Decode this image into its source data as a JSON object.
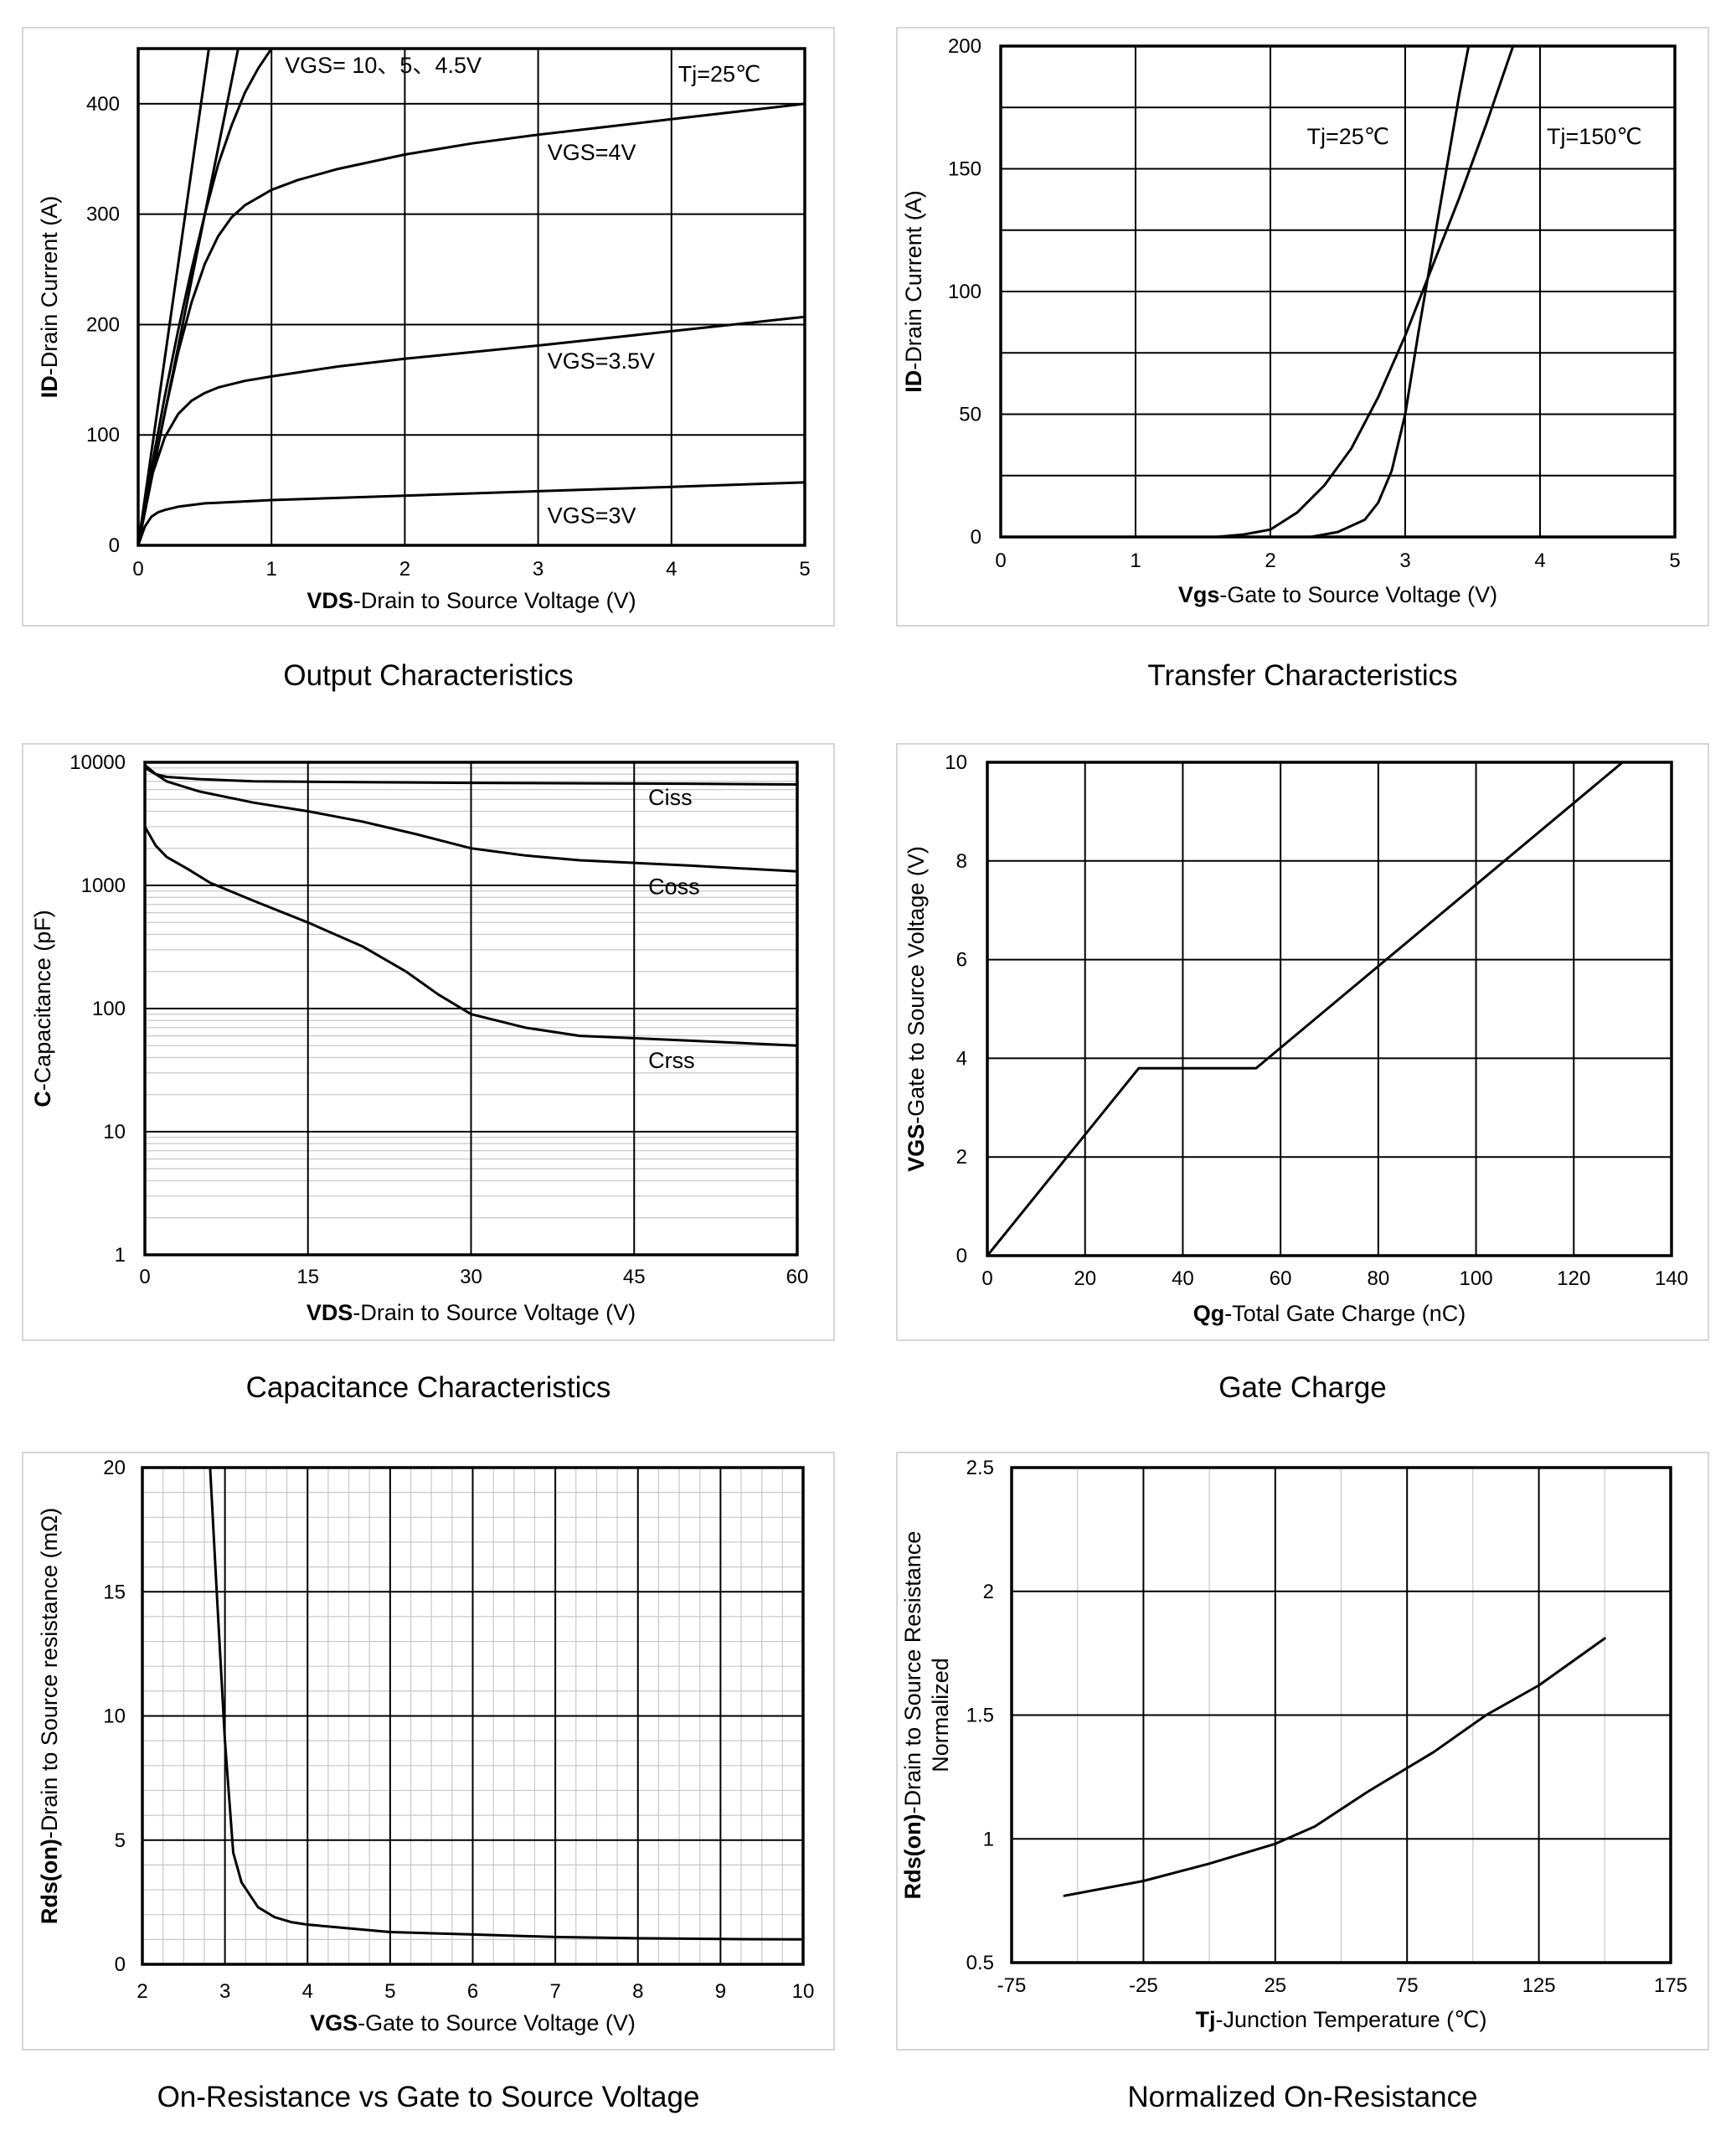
{
  "chart_data": [
    {
      "type": "line",
      "title": "Output Characteristics",
      "xlabel_bold": "VDS",
      "xlabel_rest": "-Drain to Source Voltage (V)",
      "ylabel_bold": "ID",
      "ylabel_rest": "-Drain Current (A)",
      "xlim": [
        0,
        5
      ],
      "ylim": [
        0,
        450
      ],
      "xticks": [
        0,
        1,
        2,
        3,
        4,
        5
      ],
      "yticks": [
        0,
        100,
        200,
        300,
        400
      ],
      "hgrid": [
        0,
        100,
        200,
        300,
        400
      ],
      "vgrid": [
        1,
        2,
        3,
        4
      ],
      "series": [
        {
          "name": "VGS=10V",
          "x": [
            0,
            0.53
          ],
          "y": [
            0,
            450
          ]
        },
        {
          "name": "VGS=5V",
          "x": [
            0,
            0.75
          ],
          "y": [
            0,
            450
          ]
        },
        {
          "name": "VGS=4.5V",
          "x": [
            0,
            0.1,
            0.2,
            0.3,
            0.4,
            0.5,
            0.6,
            0.7,
            0.8,
            0.9,
            1.0
          ],
          "y": [
            0,
            70,
            135,
            195,
            250,
            300,
            345,
            380,
            410,
            432,
            450
          ]
        },
        {
          "name": "VGS=4V",
          "x": [
            0,
            0.1,
            0.2,
            0.3,
            0.4,
            0.5,
            0.6,
            0.7,
            0.8,
            1.0,
            1.2,
            1.5,
            2.0,
            2.5,
            3.0,
            3.5,
            4.0,
            4.5,
            5.0
          ],
          "y": [
            0,
            60,
            120,
            175,
            220,
            255,
            280,
            297,
            308,
            322,
            331,
            341,
            354,
            364,
            372,
            379,
            386,
            393,
            400
          ]
        },
        {
          "name": "VGS=3.5V",
          "x": [
            0,
            0.05,
            0.1,
            0.2,
            0.3,
            0.4,
            0.5,
            0.6,
            0.8,
            1.0,
            1.5,
            2.0,
            3.0,
            4.0,
            5.0
          ],
          "y": [
            0,
            35,
            62,
            98,
            119,
            131,
            138,
            143,
            149,
            153,
            162,
            169,
            181,
            194,
            207
          ]
        },
        {
          "name": "VGS=3V",
          "x": [
            0,
            0.05,
            0.1,
            0.15,
            0.2,
            0.3,
            0.5,
            1.0,
            2.0,
            3.0,
            4.0,
            5.0
          ],
          "y": [
            0,
            17,
            26,
            30,
            32,
            35,
            38,
            41,
            45,
            49,
            53,
            57
          ]
        }
      ],
      "annotations": [
        {
          "text": "VGS= 10、5、4.5V",
          "x": 1.1,
          "y": 428
        },
        {
          "text": "Tj=25℃",
          "x": 4.05,
          "y": 420
        },
        {
          "text": "VGS=4V",
          "x": 3.07,
          "y": 349
        },
        {
          "text": "VGS=3.5V",
          "x": 3.07,
          "y": 160
        },
        {
          "text": "VGS=3V",
          "x": 3.07,
          "y": 20
        }
      ]
    },
    {
      "type": "line",
      "title": "Transfer Characteristics",
      "xlabel_bold": "Vgs",
      "xlabel_rest": "-Gate to Source Voltage (V)",
      "ylabel_bold": "ID",
      "ylabel_rest": "-Drain Current (A)",
      "xlim": [
        0,
        5
      ],
      "ylim": [
        0,
        200
      ],
      "xticks": [
        0,
        1,
        2,
        3,
        4,
        5
      ],
      "yticks": [
        0,
        50,
        100,
        150,
        200
      ],
      "hgrid": [
        0,
        25,
        50,
        75,
        100,
        125,
        150,
        175
      ],
      "vgrid": [
        1,
        2,
        3,
        4
      ],
      "series": [
        {
          "name": "Tj=25℃",
          "x": [
            0,
            2.3,
            2.5,
            2.7,
            2.8,
            2.9,
            3.0,
            3.1,
            3.2,
            3.3,
            3.4,
            3.47
          ],
          "y": [
            0,
            0,
            2,
            7,
            14,
            27,
            50,
            84,
            116,
            148,
            180,
            200
          ]
        },
        {
          "name": "Tj=150℃",
          "x": [
            0,
            1.6,
            1.8,
            2.0,
            2.2,
            2.4,
            2.6,
            2.8,
            3.0,
            3.2,
            3.4,
            3.6,
            3.8
          ],
          "y": [
            0,
            0,
            1,
            3,
            10,
            21,
            36,
            57,
            82,
            110,
            138,
            168,
            200
          ]
        }
      ],
      "annotations": [
        {
          "text": "Tj=25℃",
          "x": 2.27,
          "y": 160
        },
        {
          "text": "Tj=150℃",
          "x": 4.05,
          "y": 160
        }
      ]
    },
    {
      "type": "line",
      "title": "Capacitance Characteristics",
      "xlabel_bold": "VDS",
      "xlabel_rest": "-Drain to Source Voltage (V)",
      "ylabel_bold": "C",
      "ylabel_rest": "-Capacitance (pF)",
      "yscale": "log",
      "xlim": [
        0,
        60
      ],
      "ylim": [
        1,
        10000
      ],
      "xticks": [
        0,
        15,
        30,
        45,
        60
      ],
      "yticks": [
        1,
        10,
        100,
        1000,
        10000
      ],
      "ytick_labels": [
        "1",
        "10",
        "100",
        "1000",
        "10000"
      ],
      "vgrid": [
        15,
        30,
        45
      ],
      "series": [
        {
          "name": "Ciss",
          "x": [
            0,
            1,
            2,
            5,
            10,
            20,
            30,
            40,
            50,
            60
          ],
          "y": [
            9000,
            8000,
            7600,
            7300,
            7000,
            6900,
            6800,
            6750,
            6700,
            6600
          ]
        },
        {
          "name": "Coss",
          "x": [
            0,
            1,
            2,
            5,
            10,
            15,
            20,
            25,
            30,
            35,
            40,
            50,
            60
          ],
          "y": [
            9500,
            8000,
            7000,
            5800,
            4700,
            4000,
            3300,
            2600,
            2000,
            1750,
            1600,
            1450,
            1300
          ]
        },
        {
          "name": "Crss",
          "x": [
            0,
            1,
            2,
            4,
            6,
            10,
            15,
            20,
            24,
            27,
            30,
            35,
            40,
            50,
            60
          ],
          "y": [
            3000,
            2100,
            1700,
            1350,
            1050,
            750,
            500,
            320,
            200,
            130,
            90,
            70,
            60,
            55,
            50
          ]
        }
      ],
      "annotations": [
        {
          "text": "Ciss",
          "x": 46.3,
          "y": 4500
        },
        {
          "text": "Coss",
          "x": 46.3,
          "y": 850
        },
        {
          "text": "Crss",
          "x": 46.3,
          "y": 33
        }
      ]
    },
    {
      "type": "line",
      "title": "Gate Charge",
      "xlabel_bold": "Qg",
      "xlabel_rest": "-Total  Gate Charge (nC)",
      "ylabel_bold": "VGS",
      "ylabel_rest": "-Gate to Source Voltage (V)",
      "xlim": [
        0,
        140
      ],
      "ylim": [
        0,
        10
      ],
      "xticks": [
        0,
        20,
        40,
        60,
        80,
        100,
        120,
        140
      ],
      "yticks": [
        0,
        2,
        4,
        6,
        8,
        10
      ],
      "hgrid": [
        2,
        4,
        6,
        8
      ],
      "vgrid": [
        20,
        40,
        60,
        80,
        100,
        120
      ],
      "series": [
        {
          "name": "VGS",
          "x": [
            0,
            31,
            55,
            130
          ],
          "y": [
            0,
            3.8,
            3.8,
            10
          ]
        }
      ]
    },
    {
      "type": "line",
      "title": "On-Resistance vs Gate to Source Voltage",
      "xlabel_bold": "VGS",
      "xlabel_rest": "-Gate to Source Voltage (V)",
      "ylabel_bold": "Rds(on)",
      "ylabel_rest": "-Drain to Source resistance (mΩ)",
      "xlim": [
        2,
        10
      ],
      "ylim": [
        0,
        20
      ],
      "xticks": [
        2,
        3,
        4,
        5,
        6,
        7,
        8,
        9,
        10
      ],
      "yticks": [
        0,
        5,
        10,
        15,
        20
      ],
      "series": [
        {
          "name": "Rds(on)",
          "x": [
            2.82,
            2.9,
            3.0,
            3.1,
            3.2,
            3.4,
            3.6,
            3.8,
            4.0,
            5.0,
            6.0,
            7.0,
            8.0,
            9.0,
            10.0
          ],
          "y": [
            20,
            15,
            9,
            4.5,
            3.3,
            2.3,
            1.9,
            1.7,
            1.6,
            1.3,
            1.2,
            1.1,
            1.05,
            1.02,
            1.0
          ]
        }
      ]
    },
    {
      "type": "line",
      "title": "Normalized On-Resistance",
      "xlabel_bold": "Tj",
      "xlabel_rest": "-Junction  Temperature  (℃)",
      "ylabel_bold": "Rds(on)",
      "ylabel_rest": "-Drain to Source Resistance",
      "ylabel_line2": "Normalized",
      "xlim": [
        -75,
        175
      ],
      "ylim": [
        0.5,
        2.5
      ],
      "xticks": [
        -75,
        -25,
        25,
        75,
        125,
        175
      ],
      "yticks": [
        0.5,
        1,
        1.5,
        2,
        2.5
      ],
      "series": [
        {
          "name": "Normalized Rds(on)",
          "x": [
            -55,
            -25,
            0,
            25,
            40,
            60,
            85,
            105,
            125,
            150
          ],
          "y": [
            0.77,
            0.83,
            0.9,
            0.98,
            1.05,
            1.19,
            1.35,
            1.5,
            1.62,
            1.81
          ]
        }
      ]
    }
  ]
}
